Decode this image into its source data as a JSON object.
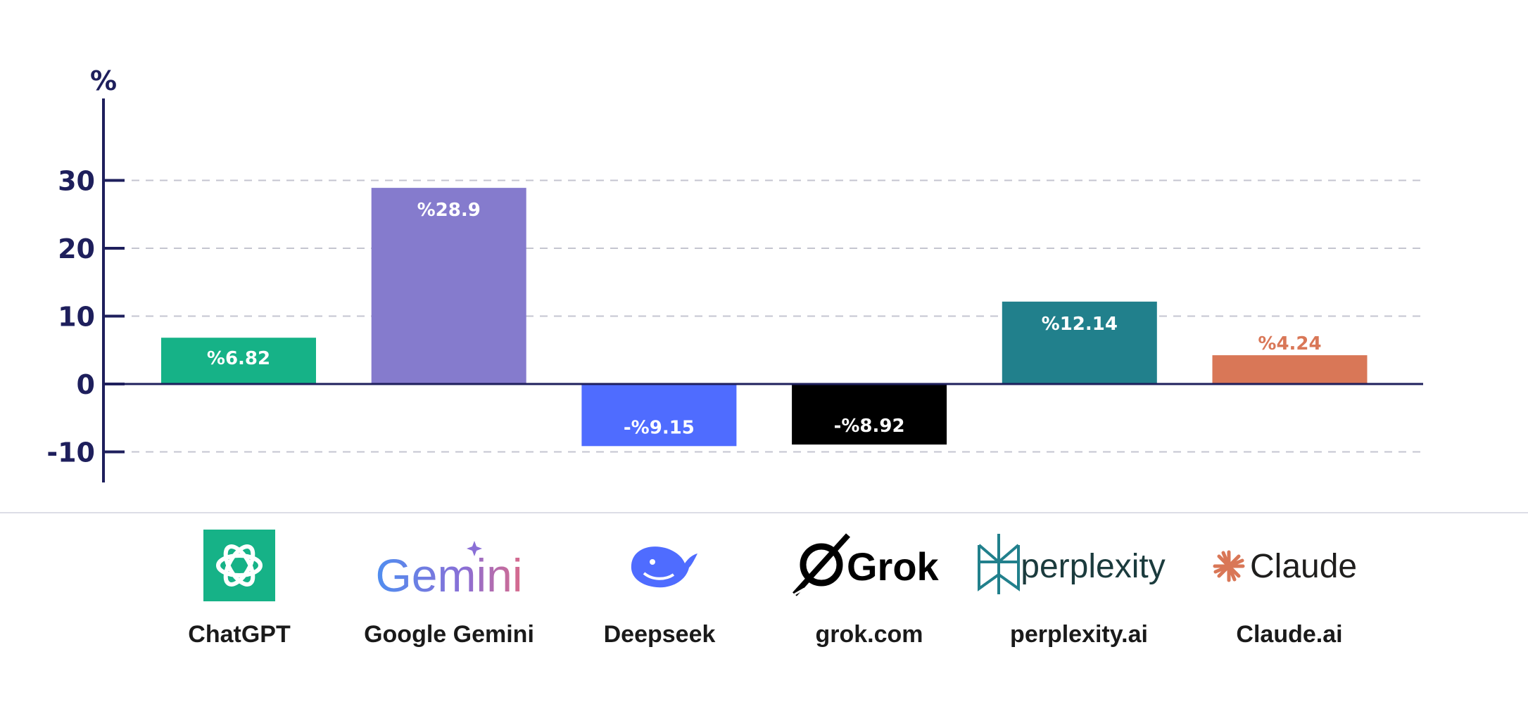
{
  "chart_data": {
    "type": "bar",
    "title": "",
    "xlabel": "",
    "ylabel": "%",
    "ylim": [
      -14.5,
      42
    ],
    "yticks": [
      30,
      20,
      10,
      0,
      -10
    ],
    "grid": true,
    "categories": [
      "ChatGPT",
      "Google Gemini",
      "Deepseek",
      "grok.com",
      "perplexity.ai",
      "Claude.ai"
    ],
    "values": [
      6.82,
      28.9,
      -9.15,
      -8.92,
      12.14,
      4.24
    ],
    "data_labels": [
      "%6.82",
      "%28.9",
      "-%9.15",
      "-%8.92",
      "%12.14",
      "%4.24"
    ],
    "colors": [
      "#16b287",
      "#857bcd",
      "#4f6cff",
      "#000000",
      "#21808c",
      "#d97757"
    ],
    "label_colors": [
      "#ffffff",
      "#ffffff",
      "#ffffff",
      "#ffffff",
      "#ffffff",
      "#d97757"
    ]
  },
  "brands": [
    {
      "name": "ChatGPT",
      "icon": "openai-knot-icon",
      "color": "#16b287"
    },
    {
      "name": "Google Gemini",
      "icon": "gemini-wordmark-icon",
      "wordmark": "Gemini",
      "color": "#5b7fe0"
    },
    {
      "name": "Deepseek",
      "icon": "deepseek-whale-icon",
      "color": "#4f6cff"
    },
    {
      "name": "grok.com",
      "icon": "grok-logo-icon",
      "wordmark": "Grok",
      "color": "#000000"
    },
    {
      "name": "perplexity.ai",
      "icon": "perplexity-logo-icon",
      "wordmark": "perplexity",
      "color": "#21808c"
    },
    {
      "name": "Claude.ai",
      "icon": "claude-logo-icon",
      "wordmark": "Claude",
      "color": "#d97757"
    }
  ]
}
